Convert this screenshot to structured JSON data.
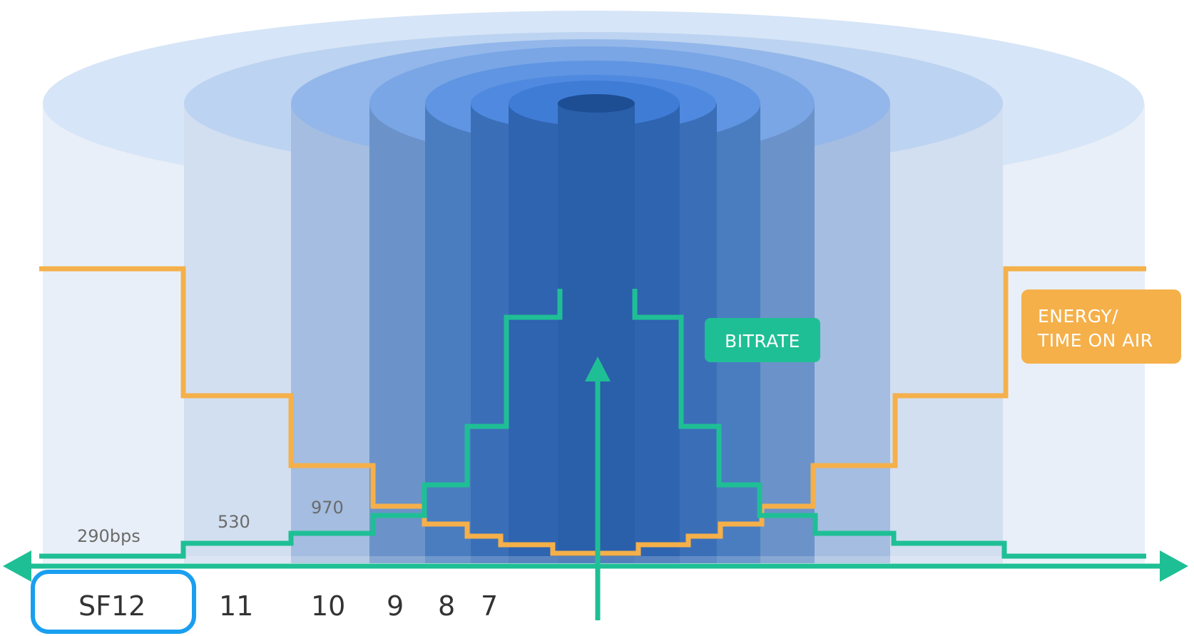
{
  "labels": {
    "bitrate": "BITRATE",
    "energy_line1": "ENERGY/",
    "energy_line2": "TIME ON AIR"
  },
  "spreading_factors": [
    {
      "label": "SF12",
      "selected": true
    },
    {
      "label": "11"
    },
    {
      "label": "10"
    },
    {
      "label": "9"
    },
    {
      "label": "8"
    },
    {
      "label": "7"
    }
  ],
  "bitrate_labels": [
    "290bps",
    "530",
    "970"
  ],
  "colors": {
    "bitrate_line": "#1fbf95",
    "energy_line": "#f5b04a",
    "selection_outline": "#1a9ff0",
    "cylinder_blue": "#2c6bd0"
  }
}
